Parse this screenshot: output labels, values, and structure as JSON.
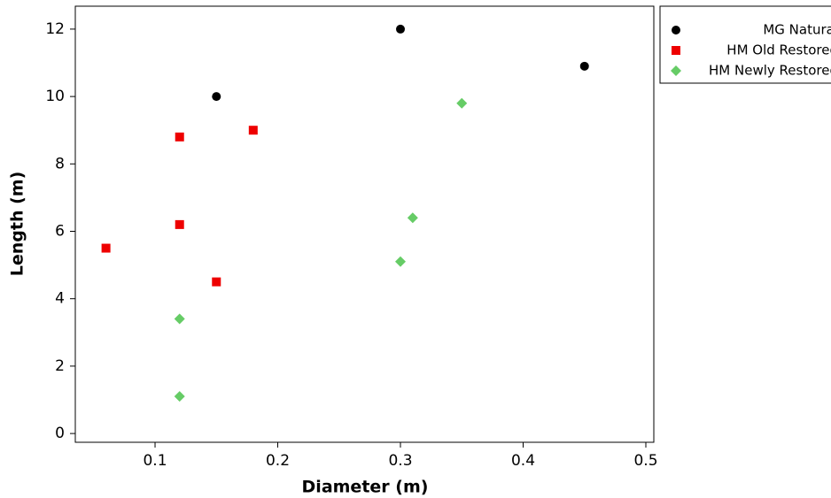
{
  "chart_data": {
    "type": "scatter",
    "x_label": "Diameter (m)",
    "y_label": "Length (m)",
    "xlim": [
      0.035,
      0.5065
    ],
    "ylim": [
      -0.26,
      12.68
    ],
    "xticks": [
      0.1,
      0.2,
      0.3,
      0.4,
      0.5
    ],
    "yticks": [
      0,
      2,
      4,
      6,
      8,
      10,
      12
    ],
    "grid": false,
    "legend": "right",
    "series": [
      {
        "name": "MG Natural",
        "color": "#000000",
        "marker": "circle",
        "x": [
          0.15,
          0.3,
          0.45
        ],
        "values": [
          10,
          12,
          10.9
        ]
      },
      {
        "name": "HM Old Restored",
        "color": "#ee0000",
        "marker": "square",
        "x": [
          0.06,
          0.12,
          0.12,
          0.15,
          0.18
        ],
        "values": [
          5.5,
          8.8,
          6.2,
          4.5,
          9.0
        ]
      },
      {
        "name": "HM Newly Restored",
        "color": "#66cc66",
        "marker": "diamond",
        "x": [
          0.12,
          0.12,
          0.3,
          0.31,
          0.35
        ],
        "values": [
          1.1,
          3.4,
          5.1,
          6.4,
          9.8
        ]
      }
    ]
  }
}
